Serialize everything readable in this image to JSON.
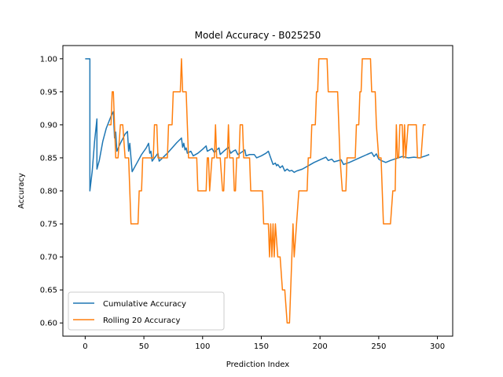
{
  "chart_data": {
    "type": "line",
    "title": "Model Accuracy - B025250",
    "xlabel": "Prediction Index",
    "ylabel": "Accuracy",
    "xlim": [
      -19,
      313
    ],
    "ylim": [
      0.58,
      1.02
    ],
    "xticks": [
      0,
      50,
      100,
      150,
      200,
      250,
      300
    ],
    "xtick_labels": [
      "0",
      "50",
      "100",
      "150",
      "200",
      "250",
      "300"
    ],
    "yticks": [
      0.6,
      0.65,
      0.7,
      0.75,
      0.8,
      0.85,
      0.9,
      0.95,
      1.0
    ],
    "ytick_labels": [
      "0.60",
      "0.65",
      "0.70",
      "0.75",
      "0.80",
      "0.85",
      "0.90",
      "0.95",
      "1.00"
    ],
    "grid": false,
    "legend_position": "lower-left",
    "series": [
      {
        "name": "Cumulative Accuracy",
        "color": "#1f77b4",
        "points": [
          [
            0,
            1.0
          ],
          [
            4,
            1.0
          ],
          [
            4,
            0.8
          ],
          [
            6,
            0.83
          ],
          [
            8,
            0.875
          ],
          [
            10,
            0.909
          ],
          [
            10,
            0.833
          ],
          [
            12,
            0.846
          ],
          [
            15,
            0.875
          ],
          [
            18,
            0.895
          ],
          [
            22,
            0.913
          ],
          [
            24,
            0.92
          ],
          [
            25,
            0.88
          ],
          [
            26,
            0.889
          ],
          [
            27,
            0.86
          ],
          [
            30,
            0.872
          ],
          [
            34,
            0.886
          ],
          [
            36,
            0.89
          ],
          [
            37,
            0.86
          ],
          [
            38,
            0.872
          ],
          [
            39,
            0.85
          ],
          [
            40,
            0.829
          ],
          [
            44,
            0.842
          ],
          [
            48,
            0.855
          ],
          [
            52,
            0.865
          ],
          [
            54,
            0.872
          ],
          [
            55,
            0.857
          ],
          [
            56,
            0.86
          ],
          [
            57,
            0.845
          ],
          [
            62,
            0.857
          ],
          [
            63,
            0.845
          ],
          [
            66,
            0.85
          ],
          [
            70,
            0.857
          ],
          [
            74,
            0.865
          ],
          [
            78,
            0.873
          ],
          [
            82,
            0.88
          ],
          [
            83,
            0.866
          ],
          [
            84,
            0.872
          ],
          [
            85,
            0.862
          ],
          [
            86,
            0.865
          ],
          [
            87,
            0.857
          ],
          [
            90,
            0.86
          ],
          [
            92,
            0.853
          ],
          [
            96,
            0.857
          ],
          [
            100,
            0.863
          ],
          [
            103,
            0.868
          ],
          [
            104,
            0.86
          ],
          [
            108,
            0.864
          ],
          [
            110,
            0.858
          ],
          [
            112,
            0.862
          ],
          [
            114,
            0.865
          ],
          [
            115,
            0.855
          ],
          [
            118,
            0.86
          ],
          [
            122,
            0.866
          ],
          [
            124,
            0.857
          ],
          [
            126,
            0.86
          ],
          [
            128,
            0.862
          ],
          [
            130,
            0.855
          ],
          [
            132,
            0.857
          ],
          [
            136,
            0.862
          ],
          [
            137,
            0.853
          ],
          [
            140,
            0.855
          ],
          [
            144,
            0.855
          ],
          [
            146,
            0.85
          ],
          [
            150,
            0.853
          ],
          [
            154,
            0.857
          ],
          [
            156,
            0.86
          ],
          [
            158,
            0.85
          ],
          [
            160,
            0.84
          ],
          [
            162,
            0.842
          ],
          [
            163,
            0.838
          ],
          [
            164,
            0.84
          ],
          [
            166,
            0.835
          ],
          [
            168,
            0.838
          ],
          [
            170,
            0.83
          ],
          [
            172,
            0.833
          ],
          [
            174,
            0.83
          ],
          [
            176,
            0.831
          ],
          [
            178,
            0.828
          ],
          [
            180,
            0.83
          ],
          [
            185,
            0.833
          ],
          [
            190,
            0.838
          ],
          [
            195,
            0.843
          ],
          [
            200,
            0.847
          ],
          [
            205,
            0.851
          ],
          [
            207,
            0.846
          ],
          [
            210,
            0.848
          ],
          [
            212,
            0.844
          ],
          [
            218,
            0.847
          ],
          [
            220,
            0.84
          ],
          [
            225,
            0.843
          ],
          [
            230,
            0.847
          ],
          [
            235,
            0.851
          ],
          [
            240,
            0.855
          ],
          [
            244,
            0.858
          ],
          [
            246,
            0.852
          ],
          [
            248,
            0.856
          ],
          [
            250,
            0.848
          ],
          [
            252,
            0.846
          ],
          [
            256,
            0.843
          ],
          [
            260,
            0.846
          ],
          [
            265,
            0.849
          ],
          [
            270,
            0.852
          ],
          [
            275,
            0.85
          ],
          [
            280,
            0.851
          ],
          [
            285,
            0.85
          ],
          [
            290,
            0.853
          ],
          [
            293,
            0.855
          ]
        ]
      },
      {
        "name": "Rolling 20 Accuracy",
        "color": "#ff7f0e",
        "points": [
          [
            20,
            0.9
          ],
          [
            22,
            0.9
          ],
          [
            23,
            0.95
          ],
          [
            24,
            0.95
          ],
          [
            25,
            0.9
          ],
          [
            26,
            0.85
          ],
          [
            28,
            0.85
          ],
          [
            30,
            0.9
          ],
          [
            32,
            0.9
          ],
          [
            34,
            0.85
          ],
          [
            37,
            0.85
          ],
          [
            38,
            0.8
          ],
          [
            39,
            0.75
          ],
          [
            45,
            0.75
          ],
          [
            46,
            0.8
          ],
          [
            48,
            0.8
          ],
          [
            49,
            0.85
          ],
          [
            55,
            0.85
          ],
          [
            56,
            0.85
          ],
          [
            57,
            0.85
          ],
          [
            58,
            0.85
          ],
          [
            59,
            0.9
          ],
          [
            61,
            0.9
          ],
          [
            62,
            0.85
          ],
          [
            70,
            0.85
          ],
          [
            71,
            0.9
          ],
          [
            74,
            0.9
          ],
          [
            75,
            0.95
          ],
          [
            81,
            0.95
          ],
          [
            82,
            1.0
          ],
          [
            83,
            0.95
          ],
          [
            86,
            0.95
          ],
          [
            87,
            0.9
          ],
          [
            88,
            0.85
          ],
          [
            95,
            0.85
          ],
          [
            96,
            0.8
          ],
          [
            103,
            0.8
          ],
          [
            104,
            0.85
          ],
          [
            105,
            0.85
          ],
          [
            106,
            0.8
          ],
          [
            108,
            0.85
          ],
          [
            110,
            0.85
          ],
          [
            111,
            0.9
          ],
          [
            112,
            0.85
          ],
          [
            115,
            0.85
          ],
          [
            117,
            0.8
          ],
          [
            118,
            0.8
          ],
          [
            119,
            0.85
          ],
          [
            121,
            0.85
          ],
          [
            122,
            0.9
          ],
          [
            123,
            0.85
          ],
          [
            126,
            0.85
          ],
          [
            127,
            0.8
          ],
          [
            128,
            0.8
          ],
          [
            129,
            0.85
          ],
          [
            131,
            0.85
          ],
          [
            132,
            0.9
          ],
          [
            134,
            0.9
          ],
          [
            135,
            0.85
          ],
          [
            140,
            0.85
          ],
          [
            141,
            0.8
          ],
          [
            151,
            0.8
          ],
          [
            152,
            0.75
          ],
          [
            154,
            0.75
          ],
          [
            156,
            0.75
          ],
          [
            157,
            0.7
          ],
          [
            158,
            0.75
          ],
          [
            159,
            0.7
          ],
          [
            160,
            0.75
          ],
          [
            161,
            0.7
          ],
          [
            162,
            0.75
          ],
          [
            164,
            0.7
          ],
          [
            166,
            0.7
          ],
          [
            168,
            0.65
          ],
          [
            170,
            0.65
          ],
          [
            172,
            0.6
          ],
          [
            174,
            0.6
          ],
          [
            176,
            0.7
          ],
          [
            177,
            0.75
          ],
          [
            178,
            0.7
          ],
          [
            180,
            0.75
          ],
          [
            182,
            0.8
          ],
          [
            189,
            0.8
          ],
          [
            190,
            0.85
          ],
          [
            192,
            0.85
          ],
          [
            193,
            0.9
          ],
          [
            196,
            0.9
          ],
          [
            197,
            0.95
          ],
          [
            198,
            0.95
          ],
          [
            199,
            1.0
          ],
          [
            206,
            1.0
          ],
          [
            207,
            0.95
          ],
          [
            215,
            0.95
          ],
          [
            216,
            0.9
          ],
          [
            217,
            0.85
          ],
          [
            219,
            0.8
          ],
          [
            222,
            0.8
          ],
          [
            223,
            0.85
          ],
          [
            230,
            0.85
          ],
          [
            231,
            0.9
          ],
          [
            233,
            0.9
          ],
          [
            234,
            0.95
          ],
          [
            235,
            0.95
          ],
          [
            236,
            1.0
          ],
          [
            243,
            1.0
          ],
          [
            244,
            0.95
          ],
          [
            247,
            0.95
          ],
          [
            248,
            0.9
          ],
          [
            250,
            0.85
          ],
          [
            252,
            0.85
          ],
          [
            253,
            0.8
          ],
          [
            254,
            0.75
          ],
          [
            260,
            0.75
          ],
          [
            262,
            0.8
          ],
          [
            264,
            0.8
          ],
          [
            265,
            0.9
          ],
          [
            266,
            0.85
          ],
          [
            267,
            0.85
          ],
          [
            268,
            0.9
          ],
          [
            270,
            0.9
          ],
          [
            271,
            0.85
          ],
          [
            272,
            0.9
          ],
          [
            273,
            0.85
          ],
          [
            275,
            0.9
          ],
          [
            282,
            0.9
          ],
          [
            283,
            0.85
          ],
          [
            286,
            0.85
          ],
          [
            288,
            0.9
          ],
          [
            290,
            0.9
          ]
        ]
      }
    ]
  }
}
